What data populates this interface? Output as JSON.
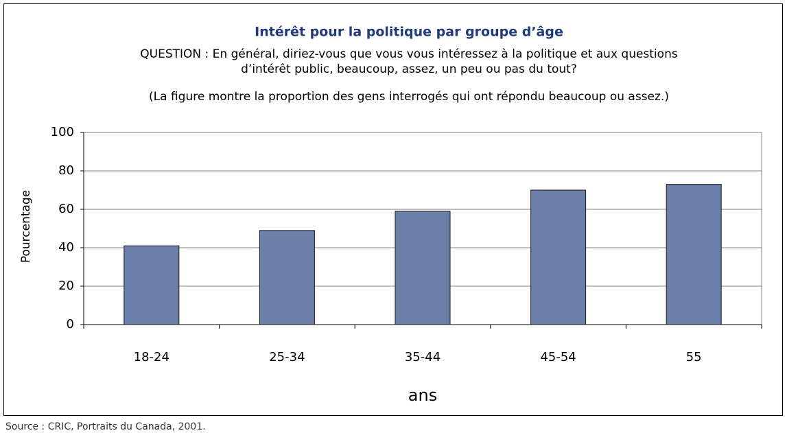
{
  "chart_data": {
    "type": "bar",
    "title": "Intérêt pour la politique par groupe d’âge",
    "subtitle": [
      "QUESTION : En général, diriez-vous que vous vous intéressez à la politique et aux questions",
      "d’intérêt public, beaucoup, assez, un peu ou pas du tout?"
    ],
    "note": "(La figure montre la proportion des gens interrogés qui ont répondu beaucoup ou assez.)",
    "ylabel": "Pourcentage",
    "xlabel": "ans",
    "source": "Source : CRIC, Portraits du Canada, 2001.",
    "categories": [
      "18-24",
      "25-34",
      "35-44",
      "45-54",
      "55"
    ],
    "values": [
      41,
      49,
      59,
      70,
      73
    ],
    "color": "#6b7fa8",
    "ylim": [
      0,
      100
    ],
    "yticks": [
      0,
      20,
      40,
      60,
      80,
      100
    ],
    "grid": true
  }
}
